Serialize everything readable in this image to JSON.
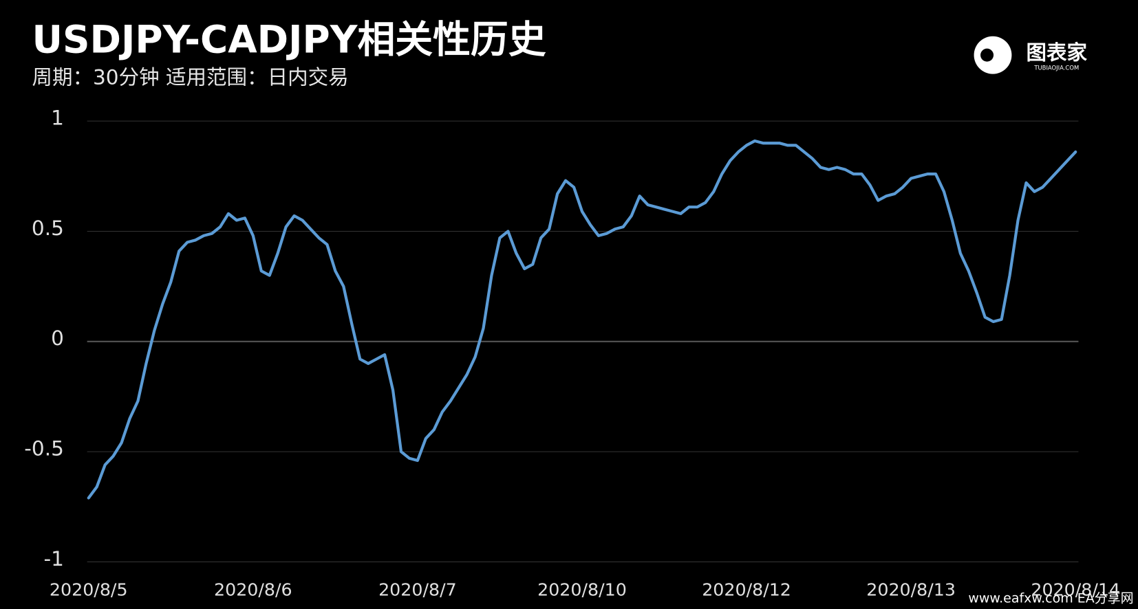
{
  "chart_data": {
    "type": "line",
    "title": "USDJPY-CADJPY相关性历史",
    "subtitle": "周期：30分钟  适用范围：日内交易",
    "logo": {
      "name": "图表家",
      "site": "TUBIAOJIA.COM"
    },
    "watermark": "www.eafxw.com  EA分享网",
    "color": "#5b9bd5",
    "grid": true,
    "ylim": [
      -1,
      1
    ],
    "yticks": [
      -1,
      -0.5,
      0,
      0.5,
      1
    ],
    "categories": [
      "2020/8/5",
      null,
      null,
      null,
      null,
      null,
      null,
      null,
      null,
      null,
      null,
      null,
      null,
      null,
      null,
      null,
      null,
      null,
      null,
      null,
      "2020/8/6",
      null,
      null,
      null,
      null,
      null,
      null,
      null,
      null,
      null,
      null,
      null,
      null,
      null,
      null,
      null,
      null,
      null,
      null,
      null,
      "2020/8/7",
      null,
      null,
      null,
      null,
      null,
      null,
      null,
      null,
      null,
      null,
      null,
      null,
      null,
      null,
      null,
      null,
      null,
      null,
      null,
      "2020/8/10",
      null,
      null,
      null,
      null,
      null,
      null,
      null,
      null,
      null,
      null,
      null,
      null,
      null,
      null,
      null,
      null,
      null,
      null,
      null,
      "2020/8/12",
      null,
      null,
      null,
      null,
      null,
      null,
      null,
      null,
      null,
      null,
      null,
      null,
      null,
      null,
      null,
      null,
      null,
      null,
      null,
      "2020/8/13",
      null,
      null,
      null,
      null,
      null,
      null,
      null,
      null,
      null,
      null,
      null,
      null,
      null,
      null,
      null,
      null,
      null,
      null,
      null,
      "2020/8/14"
    ],
    "values": [
      -0.71,
      -0.66,
      -0.56,
      -0.52,
      -0.46,
      -0.35,
      -0.27,
      -0.1,
      0.05,
      0.17,
      0.27,
      0.41,
      0.45,
      0.46,
      0.48,
      0.49,
      0.52,
      0.58,
      0.55,
      0.56,
      0.48,
      0.32,
      0.3,
      0.4,
      0.52,
      0.57,
      0.55,
      0.51,
      0.47,
      0.44,
      0.32,
      0.25,
      0.08,
      -0.08,
      -0.1,
      -0.08,
      -0.06,
      -0.22,
      -0.5,
      -0.53,
      -0.54,
      -0.44,
      -0.4,
      -0.32,
      -0.27,
      -0.21,
      -0.15,
      -0.07,
      0.06,
      0.3,
      0.47,
      0.5,
      0.4,
      0.33,
      0.35,
      0.47,
      0.51,
      0.67,
      0.73,
      0.7,
      0.59,
      0.53,
      0.48,
      0.49,
      0.51,
      0.52,
      0.57,
      0.66,
      0.62,
      0.61,
      0.6,
      0.59,
      0.58,
      0.61,
      0.61,
      0.63,
      0.68,
      0.76,
      0.82,
      0.86,
      0.89,
      0.91,
      0.9,
      0.9,
      0.9,
      0.89,
      0.89,
      0.86,
      0.83,
      0.79,
      0.78,
      0.79,
      0.78,
      0.76,
      0.76,
      0.71,
      0.64,
      0.66,
      0.67,
      0.7,
      0.74,
      0.75,
      0.76,
      0.76,
      0.68,
      0.55,
      0.4,
      0.32,
      0.22,
      0.11,
      0.09,
      0.1,
      0.3,
      0.55,
      0.72,
      0.68,
      0.7,
      0.74,
      0.78,
      0.82,
      0.86
    ]
  }
}
